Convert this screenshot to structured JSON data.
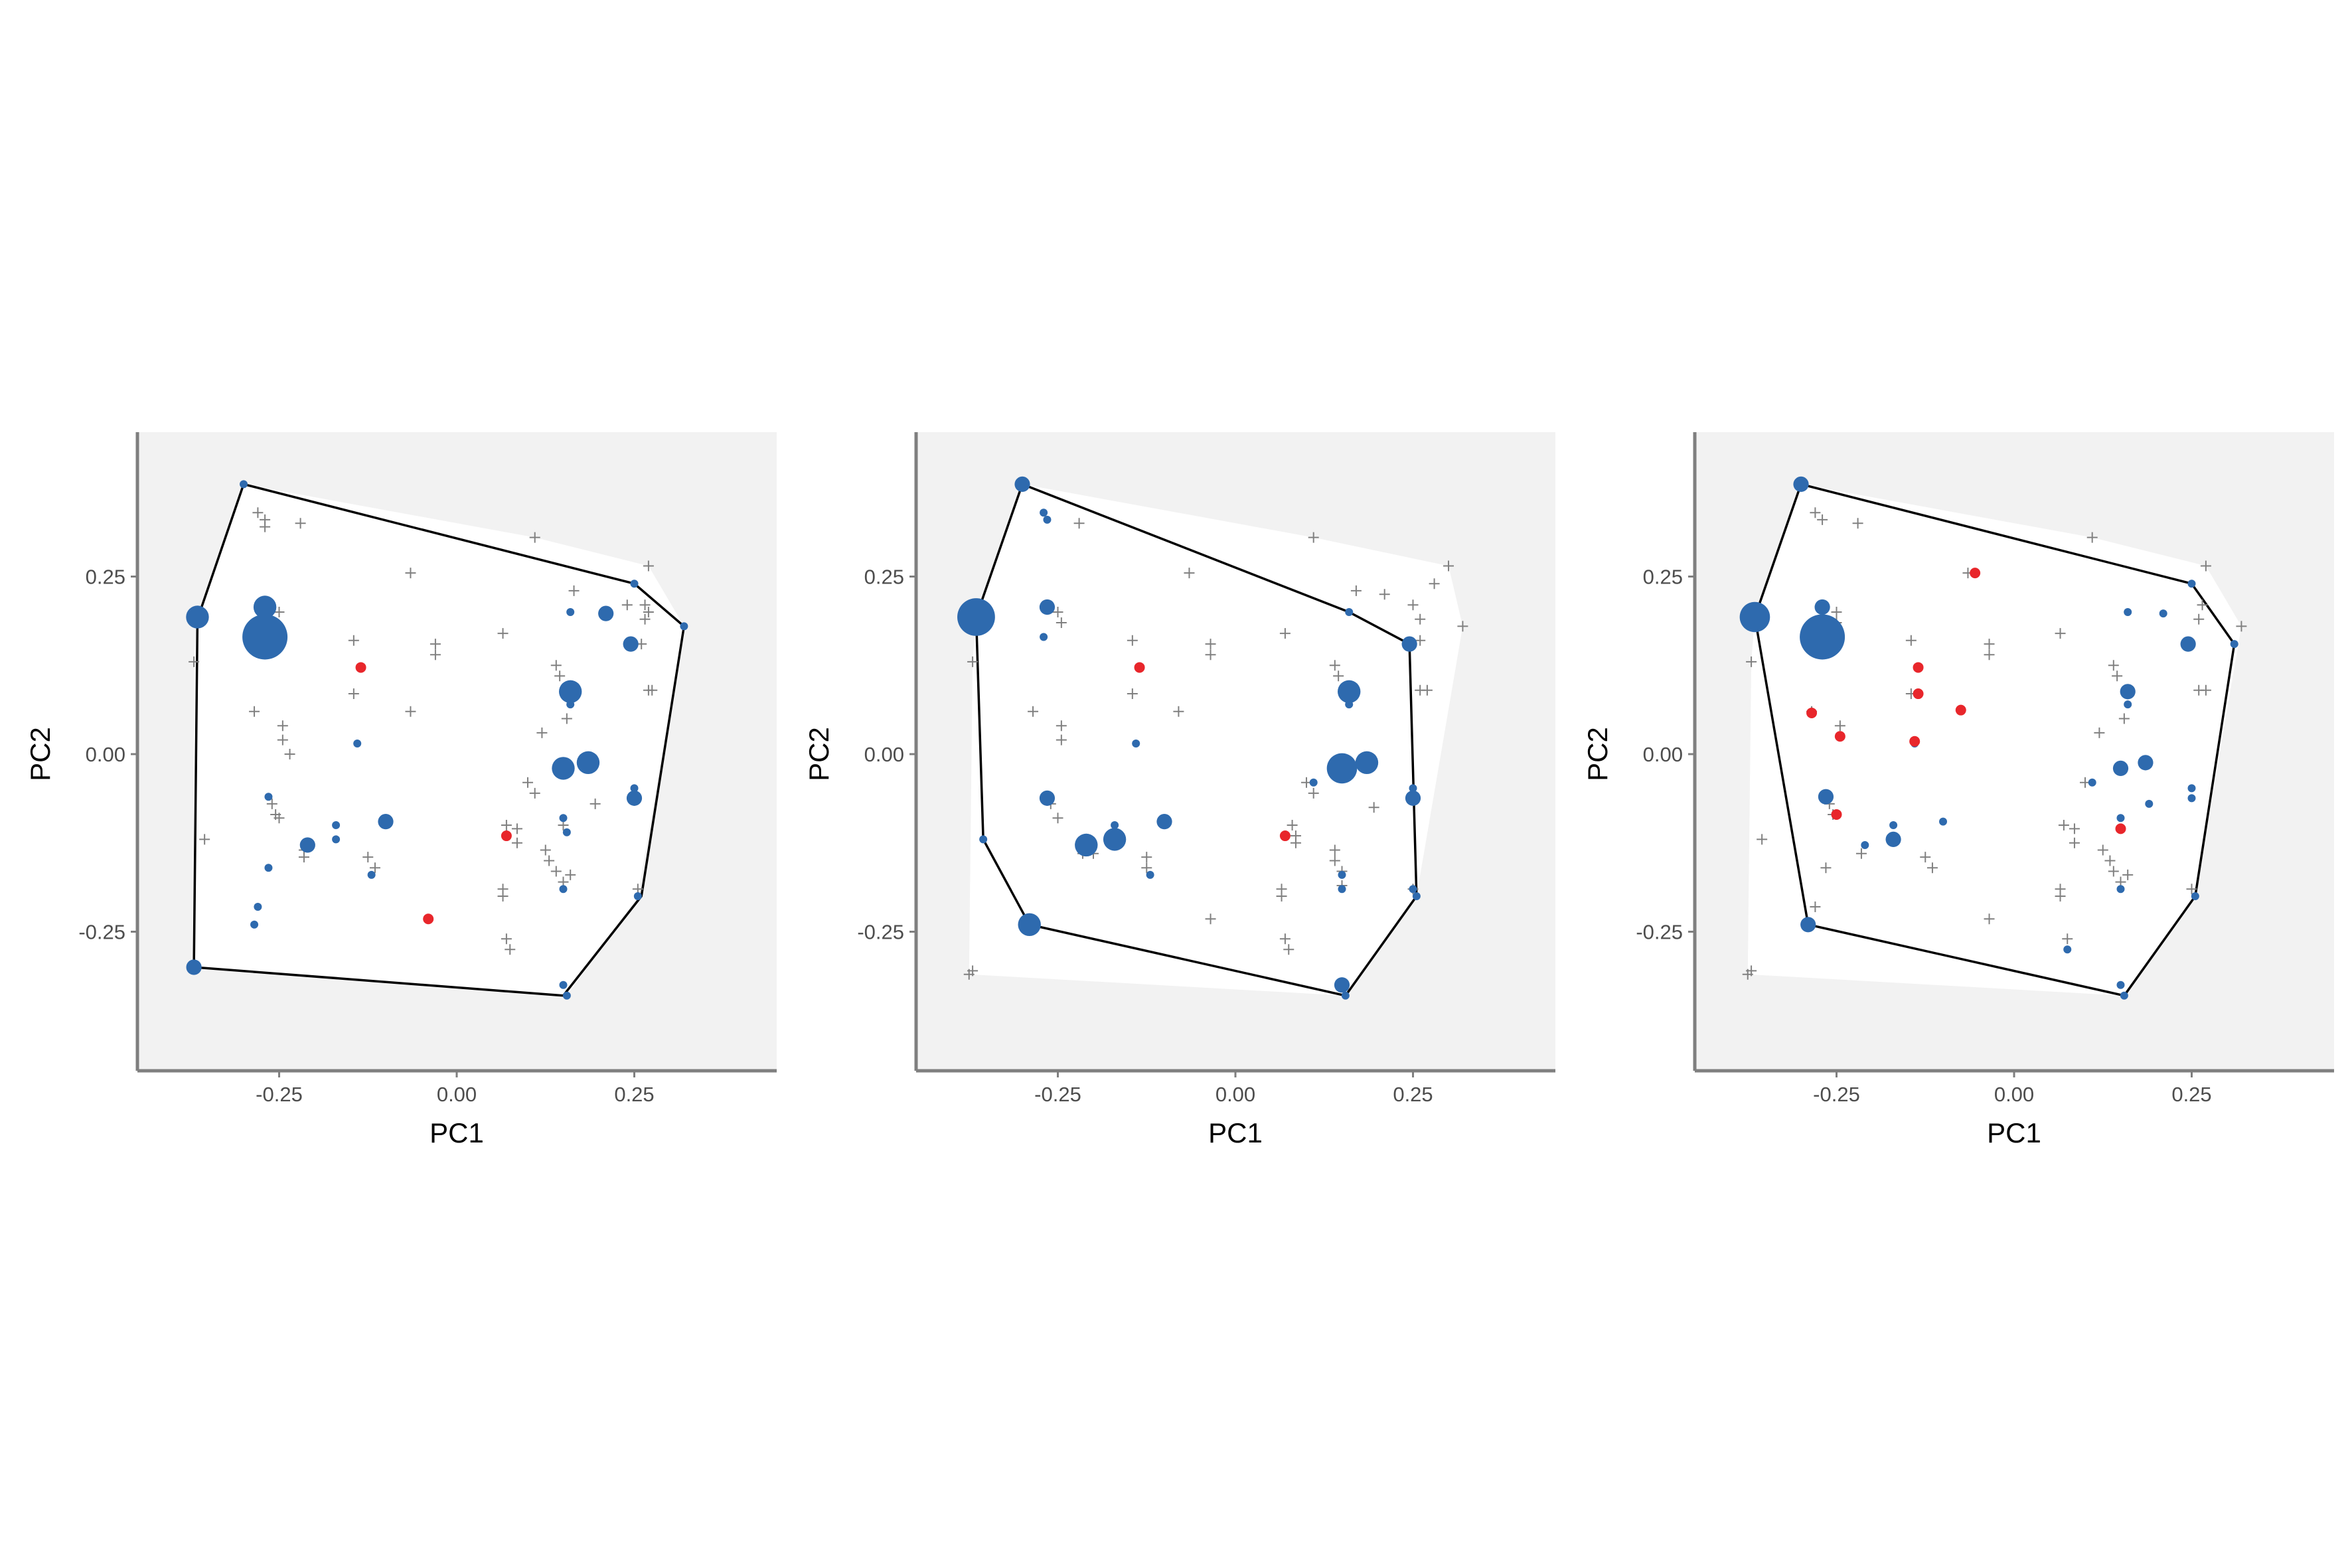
{
  "colors": {
    "panel_bg": "#f2f2f2",
    "total_hull_fill": "#ffffff",
    "hull_line": "#000000",
    "point_blue": "#2e6aae",
    "point_red": "#e8262b",
    "cross": "#808080",
    "axis_line": "#7f7f7f"
  },
  "chart_data": [
    {
      "type": "scatter",
      "title": "",
      "xlabel": "PC1",
      "ylabel": "PC2",
      "xlim": [
        -0.45,
        0.45
      ],
      "ylim": [
        -0.45,
        0.45
      ],
      "xticks": [
        "-0.25",
        "0.00",
        "0.25"
      ],
      "yticks": [
        "-0.25",
        "0.00",
        "0.25"
      ],
      "grid": false,
      "hull": [
        [
          -0.3,
          0.38
        ],
        [
          0.25,
          0.24
        ],
        [
          0.32,
          0.18
        ],
        [
          0.26,
          -0.2
        ],
        [
          0.15,
          -0.34
        ],
        [
          -0.37,
          -0.3
        ],
        [
          -0.365,
          0.19
        ]
      ],
      "blue_points": [
        [
          -0.3,
          0.38,
          2
        ],
        [
          -0.365,
          0.193,
          4
        ],
        [
          -0.27,
          0.207,
          4
        ],
        [
          -0.27,
          0.165,
          7
        ],
        [
          -0.265,
          -0.06,
          2
        ],
        [
          -0.265,
          -0.16,
          2
        ],
        [
          -0.28,
          -0.215,
          2
        ],
        [
          -0.285,
          -0.24,
          2
        ],
        [
          -0.21,
          -0.128,
          3
        ],
        [
          -0.17,
          -0.1,
          2
        ],
        [
          -0.17,
          -0.12,
          2
        ],
        [
          -0.14,
          0.015,
          2
        ],
        [
          -0.12,
          -0.17,
          2
        ],
        [
          -0.1,
          -0.095,
          3
        ],
        [
          -0.37,
          -0.3,
          3
        ],
        [
          0.15,
          -0.02,
          4
        ],
        [
          0.16,
          0.2,
          2
        ],
        [
          0.16,
          0.088,
          4
        ],
        [
          0.16,
          0.07,
          2
        ],
        [
          0.15,
          -0.09,
          2
        ],
        [
          0.155,
          -0.11,
          2
        ],
        [
          0.15,
          -0.19,
          2
        ],
        [
          0.15,
          -0.325,
          2
        ],
        [
          0.155,
          -0.34,
          2
        ],
        [
          0.185,
          -0.012,
          4
        ],
        [
          0.21,
          0.198,
          3
        ],
        [
          0.245,
          0.155,
          3
        ],
        [
          0.25,
          -0.048,
          2
        ],
        [
          0.25,
          -0.062,
          3
        ],
        [
          0.25,
          0.24,
          2
        ],
        [
          0.255,
          -0.2,
          2
        ],
        [
          0.32,
          0.18,
          2
        ]
      ],
      "red_points": [
        [
          -0.135,
          0.122
        ],
        [
          0.07,
          -0.115
        ],
        [
          -0.04,
          -0.232
        ]
      ],
      "crosses": [
        [
          -0.28,
          0.34
        ],
        [
          -0.27,
          0.33
        ],
        [
          -0.27,
          0.32
        ],
        [
          -0.22,
          0.325
        ],
        [
          -0.065,
          0.255
        ],
        [
          0.11,
          0.305
        ],
        [
          0.27,
          0.265
        ],
        [
          -0.37,
          0.13
        ],
        [
          -0.25,
          0.2
        ],
        [
          -0.255,
          0.185
        ],
        [
          -0.145,
          0.16
        ],
        [
          -0.145,
          0.085
        ],
        [
          -0.065,
          0.06
        ],
        [
          -0.285,
          0.06
        ],
        [
          -0.245,
          0.04
        ],
        [
          -0.245,
          0.02
        ],
        [
          -0.235,
          0.0
        ],
        [
          -0.03,
          0.155
        ],
        [
          -0.03,
          0.14
        ],
        [
          0.065,
          0.17
        ],
        [
          0.14,
          0.125
        ],
        [
          0.145,
          0.11
        ],
        [
          0.155,
          0.05
        ],
        [
          0.12,
          0.03
        ],
        [
          0.165,
          0.23
        ],
        [
          0.24,
          0.21
        ],
        [
          0.265,
          0.19
        ],
        [
          0.26,
          0.155
        ],
        [
          0.27,
          0.09
        ],
        [
          0.275,
          0.09
        ],
        [
          -0.355,
          -0.12
        ],
        [
          -0.26,
          -0.07
        ],
        [
          -0.255,
          -0.085
        ],
        [
          -0.25,
          -0.09
        ],
        [
          -0.215,
          -0.135
        ],
        [
          -0.215,
          -0.145
        ],
        [
          -0.125,
          -0.145
        ],
        [
          -0.115,
          -0.16
        ],
        [
          0.07,
          -0.1
        ],
        [
          0.085,
          -0.105
        ],
        [
          0.085,
          -0.125
        ],
        [
          0.1,
          -0.04
        ],
        [
          0.11,
          -0.055
        ],
        [
          0.125,
          -0.135
        ],
        [
          0.13,
          -0.15
        ],
        [
          0.14,
          -0.165
        ],
        [
          0.15,
          -0.18
        ],
        [
          0.16,
          -0.17
        ],
        [
          0.15,
          -0.1
        ],
        [
          0.065,
          -0.2
        ],
        [
          0.065,
          -0.19
        ],
        [
          0.075,
          -0.275
        ],
        [
          0.07,
          -0.26
        ],
        [
          0.195,
          -0.07
        ],
        [
          0.255,
          -0.19
        ],
        [
          0.265,
          0.21
        ],
        [
          0.27,
          0.2
        ]
      ]
    },
    {
      "type": "scatter",
      "title": "",
      "xlabel": "PC1",
      "ylabel": "PC2",
      "xlim": [
        -0.45,
        0.45
      ],
      "ylim": [
        -0.45,
        0.45
      ],
      "xticks": [
        "-0.25",
        "0.00",
        "0.25"
      ],
      "yticks": [
        "-0.25",
        "0.00",
        "0.25"
      ],
      "grid": false,
      "hull": [
        [
          -0.3,
          0.38
        ],
        [
          0.16,
          0.2
        ],
        [
          0.245,
          0.155
        ],
        [
          0.255,
          -0.2
        ],
        [
          0.155,
          -0.34
        ],
        [
          -0.29,
          -0.24
        ],
        [
          -0.355,
          -0.12
        ],
        [
          -0.365,
          0.193
        ]
      ],
      "blue_points": [
        [
          -0.3,
          0.38,
          3
        ],
        [
          -0.27,
          0.34,
          2
        ],
        [
          -0.265,
          0.33,
          2
        ],
        [
          -0.365,
          0.193,
          6
        ],
        [
          -0.265,
          0.207,
          3
        ],
        [
          -0.27,
          0.165,
          2
        ],
        [
          -0.265,
          -0.062,
          3
        ],
        [
          -0.29,
          -0.24,
          4
        ],
        [
          -0.355,
          -0.12,
          2
        ],
        [
          -0.21,
          -0.128,
          4
        ],
        [
          -0.17,
          -0.12,
          4
        ],
        [
          -0.17,
          -0.1,
          2
        ],
        [
          -0.14,
          0.015,
          2
        ],
        [
          -0.12,
          -0.17,
          2
        ],
        [
          -0.1,
          -0.095,
          3
        ],
        [
          0.16,
          0.2,
          2
        ],
        [
          0.16,
          0.088,
          4
        ],
        [
          0.16,
          0.07,
          2
        ],
        [
          0.11,
          -0.04,
          2
        ],
        [
          0.15,
          -0.02,
          5
        ],
        [
          0.185,
          -0.012,
          4
        ],
        [
          0.15,
          -0.17,
          2
        ],
        [
          0.15,
          -0.19,
          2
        ],
        [
          0.15,
          -0.325,
          3
        ],
        [
          0.155,
          -0.34,
          2
        ],
        [
          0.245,
          0.155,
          3
        ],
        [
          0.25,
          -0.048,
          2
        ],
        [
          0.25,
          -0.062,
          3
        ],
        [
          0.25,
          -0.19,
          2
        ],
        [
          0.255,
          -0.2,
          2
        ]
      ],
      "red_points": [
        [
          -0.135,
          0.122
        ],
        [
          0.07,
          -0.115
        ]
      ],
      "crosses": [
        [
          -0.22,
          0.325
        ],
        [
          -0.065,
          0.255
        ],
        [
          0.11,
          0.305
        ],
        [
          0.17,
          0.23
        ],
        [
          0.21,
          0.225
        ],
        [
          0.28,
          0.24
        ],
        [
          0.3,
          0.265
        ],
        [
          0.32,
          0.18
        ],
        [
          0.26,
          0.19
        ],
        [
          0.25,
          0.21
        ],
        [
          0.26,
          0.16
        ],
        [
          0.27,
          0.09
        ],
        [
          0.26,
          0.09
        ],
        [
          -0.25,
          0.2
        ],
        [
          -0.245,
          0.185
        ],
        [
          -0.145,
          0.16
        ],
        [
          -0.145,
          0.085
        ],
        [
          -0.035,
          0.155
        ],
        [
          -0.035,
          0.14
        ],
        [
          -0.08,
          0.06
        ],
        [
          0.07,
          0.17
        ],
        [
          0.14,
          0.125
        ],
        [
          0.145,
          0.11
        ],
        [
          -0.285,
          0.06
        ],
        [
          -0.245,
          0.04
        ],
        [
          -0.245,
          0.02
        ],
        [
          -0.37,
          0.13
        ],
        [
          -0.26,
          -0.07
        ],
        [
          -0.25,
          -0.09
        ],
        [
          -0.2,
          -0.14
        ],
        [
          -0.215,
          -0.14
        ],
        [
          -0.125,
          -0.145
        ],
        [
          -0.125,
          -0.16
        ],
        [
          0.08,
          -0.1
        ],
        [
          0.085,
          -0.115
        ],
        [
          0.085,
          -0.125
        ],
        [
          0.1,
          -0.04
        ],
        [
          0.11,
          -0.055
        ],
        [
          0.14,
          -0.135
        ],
        [
          0.14,
          -0.15
        ],
        [
          0.15,
          -0.165
        ],
        [
          0.15,
          -0.185
        ],
        [
          0.195,
          -0.075
        ],
        [
          0.065,
          -0.2
        ],
        [
          0.065,
          -0.19
        ],
        [
          0.075,
          -0.275
        ],
        [
          0.07,
          -0.26
        ],
        [
          -0.035,
          -0.232
        ],
        [
          -0.37,
          -0.305
        ],
        [
          -0.375,
          -0.31
        ],
        [
          0.25,
          -0.19
        ]
      ]
    },
    {
      "type": "scatter",
      "title": "",
      "xlabel": "PC1",
      "ylabel": "PC2",
      "xlim": [
        -0.45,
        0.45
      ],
      "ylim": [
        -0.45,
        0.45
      ],
      "xticks": [
        "-0.25",
        "0.00",
        "0.25"
      ],
      "yticks": [
        "-0.25",
        "0.00",
        "0.25"
      ],
      "grid": false,
      "hull": [
        [
          -0.3,
          0.38
        ],
        [
          0.25,
          0.24
        ],
        [
          0.31,
          0.155
        ],
        [
          0.255,
          -0.2
        ],
        [
          0.155,
          -0.34
        ],
        [
          -0.29,
          -0.24
        ],
        [
          -0.365,
          0.193
        ]
      ],
      "blue_points": [
        [
          -0.3,
          0.38,
          3
        ],
        [
          -0.365,
          0.193,
          5
        ],
        [
          -0.27,
          0.207,
          3
        ],
        [
          -0.27,
          0.165,
          7
        ],
        [
          -0.265,
          -0.06,
          3
        ],
        [
          -0.29,
          -0.24,
          3
        ],
        [
          -0.21,
          -0.128,
          2
        ],
        [
          -0.17,
          -0.12,
          3
        ],
        [
          -0.17,
          -0.1,
          2
        ],
        [
          -0.14,
          0.015,
          2
        ],
        [
          -0.1,
          -0.095,
          2
        ],
        [
          0.075,
          -0.275,
          2
        ],
        [
          0.16,
          0.2,
          2
        ],
        [
          0.16,
          0.088,
          3
        ],
        [
          0.16,
          0.07,
          2
        ],
        [
          0.11,
          -0.04,
          2
        ],
        [
          0.15,
          -0.02,
          3
        ],
        [
          0.185,
          -0.012,
          3
        ],
        [
          0.15,
          -0.09,
          2
        ],
        [
          0.15,
          -0.19,
          2
        ],
        [
          0.15,
          -0.325,
          2
        ],
        [
          0.155,
          -0.34,
          2
        ],
        [
          0.21,
          0.198,
          2
        ],
        [
          0.245,
          0.155,
          3
        ],
        [
          0.25,
          -0.048,
          2
        ],
        [
          0.25,
          -0.062,
          2
        ],
        [
          0.255,
          -0.2,
          2
        ],
        [
          0.25,
          0.24,
          2
        ],
        [
          0.31,
          0.155,
          2
        ],
        [
          0.19,
          -0.07,
          2
        ]
      ],
      "red_points": [
        [
          -0.055,
          0.255
        ],
        [
          -0.135,
          0.122
        ],
        [
          -0.135,
          0.085
        ],
        [
          -0.075,
          0.062
        ],
        [
          -0.285,
          0.058
        ],
        [
          -0.245,
          0.025
        ],
        [
          -0.14,
          0.018
        ],
        [
          -0.25,
          -0.085
        ],
        [
          0.15,
          -0.105
        ]
      ],
      "crosses": [
        [
          -0.28,
          0.34
        ],
        [
          -0.27,
          0.33
        ],
        [
          -0.22,
          0.325
        ],
        [
          -0.065,
          0.255
        ],
        [
          0.11,
          0.305
        ],
        [
          0.27,
          0.265
        ],
        [
          0.32,
          0.18
        ],
        [
          0.26,
          0.19
        ],
        [
          0.265,
          0.21
        ],
        [
          0.27,
          0.09
        ],
        [
          0.26,
          0.09
        ],
        [
          -0.145,
          0.16
        ],
        [
          -0.145,
          0.085
        ],
        [
          -0.035,
          0.155
        ],
        [
          -0.035,
          0.14
        ],
        [
          0.065,
          0.17
        ],
        [
          0.14,
          0.125
        ],
        [
          0.145,
          0.11
        ],
        [
          0.155,
          0.05
        ],
        [
          0.12,
          0.03
        ],
        [
          -0.37,
          0.13
        ],
        [
          -0.25,
          0.2
        ],
        [
          -0.25,
          0.185
        ],
        [
          -0.285,
          0.06
        ],
        [
          -0.245,
          0.04
        ],
        [
          -0.26,
          -0.07
        ],
        [
          -0.255,
          -0.085
        ],
        [
          -0.215,
          -0.14
        ],
        [
          -0.125,
          -0.145
        ],
        [
          -0.115,
          -0.16
        ],
        [
          0.07,
          -0.1
        ],
        [
          0.085,
          -0.105
        ],
        [
          0.085,
          -0.125
        ],
        [
          0.1,
          -0.04
        ],
        [
          0.125,
          -0.135
        ],
        [
          0.135,
          -0.15
        ],
        [
          0.14,
          -0.165
        ],
        [
          0.15,
          -0.18
        ],
        [
          0.16,
          -0.17
        ],
        [
          0.065,
          -0.2
        ],
        [
          0.065,
          -0.19
        ],
        [
          0.075,
          -0.26
        ],
        [
          -0.035,
          -0.232
        ],
        [
          -0.37,
          -0.305
        ],
        [
          -0.375,
          -0.31
        ],
        [
          -0.355,
          -0.12
        ],
        [
          -0.265,
          -0.16
        ],
        [
          -0.28,
          -0.215
        ],
        [
          0.25,
          -0.19
        ]
      ]
    }
  ]
}
